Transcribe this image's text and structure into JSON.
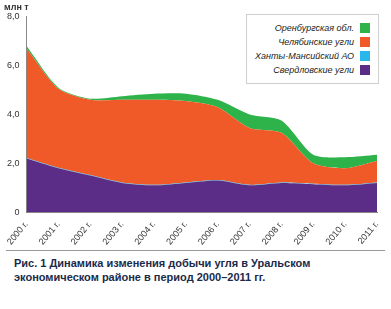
{
  "chart_data": {
    "type": "area",
    "title": "Рис. 1   Динамика изменения добычи угля в Уральском экономическом районе в период 2000–2011 гг.",
    "ylabel": "млн т",
    "categories": [
      "2000 г.",
      "2001 г.",
      "2002 г.",
      "2003 г.",
      "2004 г.",
      "2005 г.",
      "2006 г.",
      "2007 г.",
      "2008 г.",
      "2009 г.",
      "2010 г.",
      "2011 г."
    ],
    "series": [
      {
        "name": "Свердловские угли",
        "color": "#5b2d86",
        "values": [
          2.2,
          1.8,
          1.5,
          1.2,
          1.1,
          1.2,
          1.3,
          1.1,
          1.2,
          1.15,
          1.1,
          1.2
        ]
      },
      {
        "name": "Ханты-Мансийский АО",
        "color": "#29b6e8",
        "values": [
          0.02,
          0.02,
          0.02,
          0.02,
          0.02,
          0.02,
          0.02,
          0.02,
          0.02,
          0.02,
          0.02,
          0.02
        ]
      },
      {
        "name": "Челябинские угли",
        "color": "#f05a28",
        "values": [
          4.48,
          3.23,
          3.08,
          3.38,
          3.48,
          3.33,
          2.98,
          2.33,
          2.03,
          0.83,
          0.68,
          0.88
        ]
      },
      {
        "name": "Оренбургская обл.",
        "color": "#2db34a",
        "values": [
          0.1,
          0.05,
          0.05,
          0.15,
          0.25,
          0.3,
          0.3,
          0.55,
          0.5,
          0.35,
          0.45,
          0.25
        ]
      }
    ],
    "stacked": true,
    "ylim": [
      0,
      8
    ],
    "yticks": [
      0,
      {
        "value": 2,
        "label": "2,0"
      },
      {
        "value": 4,
        "label": "4,0"
      },
      {
        "value": 6,
        "label": "6,0"
      },
      {
        "value": 8,
        "label": "8,0"
      }
    ],
    "grid": false,
    "legend": "top-right"
  }
}
